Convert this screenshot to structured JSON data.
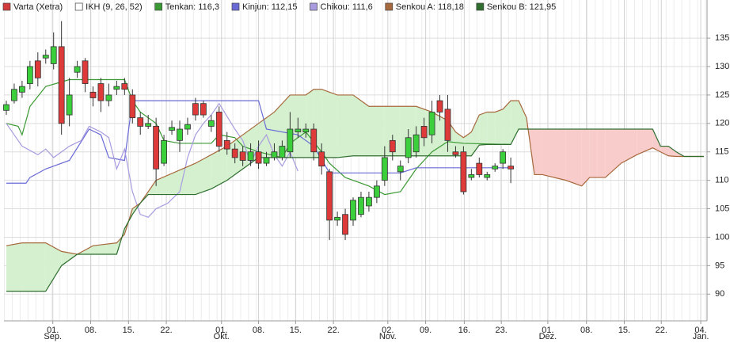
{
  "chart_data": {
    "type": "candlestick",
    "name": "Varta (Xetra)",
    "indicator": "IKH (9, 26, 52)",
    "up_color": "#3ccf3c",
    "down_color": "#de3a3a",
    "name_color": "#d23c3c",
    "cloud_colors": [
      "#d4f0cf",
      "#f9cccc"
    ],
    "x": [
      0,
      1,
      2,
      3,
      4,
      5,
      6,
      7,
      8,
      9,
      10,
      11,
      12,
      13,
      14,
      15,
      16,
      17,
      18,
      19,
      20,
      21,
      22,
      23,
      24,
      25,
      26,
      27,
      28,
      29,
      30,
      31,
      32,
      33,
      34,
      35,
      36,
      37,
      38,
      39,
      40,
      41,
      42,
      43,
      44,
      45,
      46,
      47,
      48,
      49,
      50,
      51,
      52,
      53,
      54,
      55,
      56,
      57,
      58,
      59,
      60,
      61,
      62,
      63,
      64
    ],
    "open": [
      122.3,
      124,
      125.5,
      127,
      131,
      131.5,
      130.5,
      133.5,
      121.5,
      129,
      131,
      125.5,
      127,
      124,
      126,
      127,
      125,
      121,
      119.5,
      119.5,
      113,
      118.8,
      117,
      119,
      123.5,
      123.5,
      119.5,
      122,
      117,
      115.5,
      115,
      113.5,
      115,
      113,
      114,
      114,
      115,
      118.5,
      118.5,
      119,
      115,
      111.5,
      103,
      104,
      103,
      104,
      105.5,
      107,
      110,
      117,
      111.5,
      114,
      115,
      119.5,
      118,
      124,
      122.5,
      115,
      115,
      110.5,
      113,
      110.5,
      112,
      113,
      112.5
    ],
    "high": [
      124,
      127,
      127.5,
      131,
      132.5,
      133,
      136,
      138,
      128,
      131,
      131.5,
      126.5,
      128,
      127,
      127.5,
      128,
      126,
      122,
      121.5,
      121,
      118,
      120.5,
      120.5,
      121,
      124.5,
      124,
      121.5,
      123,
      118.5,
      116.5,
      116,
      116.5,
      117,
      115,
      116.5,
      117,
      122,
      121,
      120,
      120,
      116.5,
      112,
      104.5,
      105,
      107,
      108,
      108,
      110,
      116,
      118,
      113.5,
      119,
      119.5,
      121,
      124,
      125,
      125,
      116,
      116,
      112,
      114,
      111.5,
      113,
      115.5,
      114
    ],
    "low": [
      121.5,
      123.5,
      124.5,
      126,
      126.5,
      130.5,
      129.5,
      118,
      119.5,
      128,
      125.5,
      123,
      122,
      123,
      125,
      125,
      120,
      118,
      119,
      109,
      112.5,
      118,
      115,
      118,
      120.5,
      121,
      118.5,
      115,
      114.5,
      113,
      112.5,
      112.5,
      112,
      112.5,
      113.5,
      113.5,
      114,
      117.5,
      117.5,
      113.5,
      111,
      99.5,
      102,
      99.5,
      102,
      103.5,
      104.5,
      106,
      109,
      113.5,
      110,
      113,
      114,
      116,
      116.5,
      120.5,
      115,
      114,
      107.5,
      110,
      110.5,
      110,
      111.5,
      112,
      109.5
    ],
    "close": [
      123.3,
      126,
      126.5,
      130,
      128,
      132,
      133.5,
      120,
      125,
      130,
      127,
      124.5,
      124,
      125,
      126.5,
      126,
      121,
      119.5,
      120,
      112,
      117,
      119.3,
      119,
      119.8,
      121.5,
      121.5,
      120.5,
      116,
      115.5,
      114,
      113.5,
      115,
      113,
      114,
      115,
      116,
      119,
      119,
      119,
      115,
      112.5,
      103,
      103.5,
      100.5,
      106.5,
      107,
      107,
      109,
      114,
      115,
      112.5,
      117.5,
      118,
      117.5,
      122,
      122,
      117,
      114.5,
      108,
      111,
      111,
      111,
      112.5,
      115,
      112
    ],
    "lines": [
      {
        "name": "Tenkan: 116,3",
        "color": "#3c9a34",
        "x": [
          0,
          1.5,
          2,
          3,
          5,
          8,
          15,
          16,
          17,
          19,
          20,
          22,
          26,
          27,
          29,
          30,
          32,
          35,
          36,
          38,
          40,
          41,
          43,
          46,
          48,
          50,
          52,
          54,
          56,
          58,
          64
        ],
        "values": [
          120,
          119.5,
          118,
          123,
          126.5,
          127.7,
          127.7,
          124,
          122,
          120,
          117,
          116.5,
          116.5,
          118,
          117.5,
          116,
          115,
          114,
          116.5,
          118.5,
          115,
          113,
          110.5,
          109,
          107.5,
          108,
          112,
          115,
          116.8,
          116.5,
          116.3
        ]
      },
      {
        "name": "Kinjun: 112,15",
        "color": "#6a6ad6",
        "x": [
          0,
          2.5,
          3,
          5,
          8,
          10.5,
          12,
          13,
          15,
          16,
          32,
          33,
          37,
          39,
          41,
          50,
          52,
          64
        ],
        "values": [
          109.5,
          109.5,
          110.5,
          112,
          113.5,
          119,
          118,
          114,
          113.5,
          124,
          124,
          119,
          118,
          116,
          111.3,
          111.3,
          112.2,
          112.2
        ]
      },
      {
        "name": "Chikou: 111,6",
        "color": "#a99be0",
        "x": [
          0,
          2,
          4,
          5,
          6,
          8,
          9.5,
          10.5,
          12,
          13,
          14,
          15,
          16,
          17,
          18,
          19,
          20.5,
          22,
          23,
          24,
          25,
          26,
          27,
          29,
          30,
          31,
          32,
          33,
          34,
          35,
          36,
          37
        ],
        "values": [
          120,
          116,
          114.5,
          115.5,
          114,
          116,
          117,
          119.5,
          118.5,
          117.5,
          112,
          115.5,
          108,
          104,
          103.5,
          105,
          106,
          108,
          114,
          118,
          120,
          121.5,
          123.5,
          119,
          117,
          113,
          116,
          118,
          114.5,
          112.5,
          115,
          111.6
        ]
      },
      {
        "name": "Senkou A: 118,18",
        "color": "#a7683c",
        "x": [
          0,
          2,
          5,
          7,
          9,
          11,
          14,
          15,
          16,
          17,
          18,
          19,
          24,
          26,
          28,
          30,
          32,
          34,
          36,
          38,
          39,
          40,
          42,
          44,
          46,
          48,
          50,
          52,
          54,
          56,
          57,
          58,
          59,
          60,
          61,
          62,
          63,
          64,
          65,
          66,
          67,
          68,
          71,
          73,
          74,
          75,
          76,
          78,
          80,
          82,
          83,
          84,
          85,
          86,
          88.5
        ],
        "values": [
          98.5,
          99,
          99,
          97.5,
          97,
          98.5,
          99,
          100.5,
          105,
          106,
          108,
          110,
          113,
          114.5,
          116,
          118,
          120,
          122,
          125,
          125,
          126,
          126,
          125,
          125,
          123,
          123,
          123,
          123,
          122,
          120.5,
          118.5,
          117.5,
          118.5,
          121.5,
          122,
          122,
          122.5,
          124,
          124,
          121,
          111,
          111,
          110,
          109,
          110.5,
          110.5,
          110.5,
          113,
          114.5,
          115.7,
          115,
          114.3,
          114.2,
          114.2,
          114.2
        ]
      },
      {
        "name": "Senkou B: 121,95",
        "color": "#2f6e2f",
        "x": [
          0,
          2,
          5,
          7,
          9,
          11,
          14,
          15,
          16,
          17,
          18,
          19,
          24,
          26,
          28,
          30,
          32,
          34,
          36,
          38,
          39,
          40,
          42,
          44,
          46,
          48,
          50,
          52,
          54,
          56,
          57,
          58,
          59,
          60,
          61,
          62,
          63,
          64,
          65,
          66,
          67,
          68,
          71,
          73,
          74,
          75,
          76,
          78,
          80,
          82,
          83,
          84,
          85,
          86,
          88.5
        ],
        "values": [
          90.5,
          90.5,
          90.5,
          95,
          97,
          97,
          97,
          101.5,
          104,
          106,
          107.5,
          107.5,
          107.5,
          108.5,
          110,
          112,
          114,
          114,
          114,
          114,
          114,
          114,
          114,
          114.3,
          114.3,
          114.3,
          114.3,
          114.3,
          114.3,
          114.3,
          114.3,
          114.3,
          114.3,
          116.2,
          116.3,
          116.3,
          116.3,
          116.3,
          119,
          119,
          119,
          119,
          119,
          119,
          119,
          119,
          119,
          119,
          119,
          119,
          116,
          116,
          115,
          114.2,
          114.2
        ]
      }
    ],
    "xlim": [
      -0.3,
      88.9
    ],
    "xticks": [
      {
        "value": 5.9,
        "label": "01.",
        "month": "Sep."
      },
      {
        "value": 10.7,
        "label": "08."
      },
      {
        "value": 15.5,
        "label": "15."
      },
      {
        "value": 20.3,
        "label": "22."
      },
      {
        "value": 27.3,
        "label": "01.",
        "month": "Okt."
      },
      {
        "value": 32,
        "label": "08."
      },
      {
        "value": 36.7,
        "label": "15."
      },
      {
        "value": 41.5,
        "label": "22."
      },
      {
        "value": 48.4,
        "label": "02.",
        "month": "Nov."
      },
      {
        "value": 53.2,
        "label": "09."
      },
      {
        "value": 58.1,
        "label": "16."
      },
      {
        "value": 62.8,
        "label": "23."
      },
      {
        "value": 68.7,
        "label": "01.",
        "month": "Dez."
      },
      {
        "value": 73.6,
        "label": "08."
      },
      {
        "value": 78.4,
        "label": "15."
      },
      {
        "value": 83.1,
        "label": "22."
      },
      {
        "value": 88.1,
        "label": "04.",
        "month": "Jan."
      }
    ],
    "ylim": [
      85.3,
      141.7
    ],
    "yticks": [
      90,
      95,
      100,
      105,
      110,
      115,
      120,
      125,
      130,
      135
    ],
    "grid": true
  }
}
